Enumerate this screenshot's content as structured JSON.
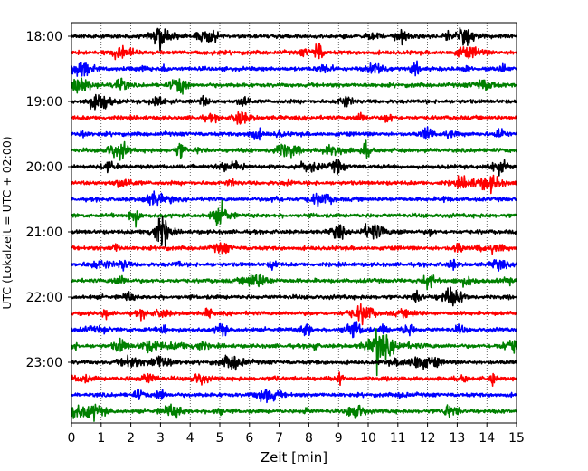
{
  "chart_data": {
    "type": "line",
    "title": "",
    "xlabel": "Zeit  [min]",
    "ylabel": "UTC (Lokalzeit = UTC + 02:00)",
    "xlim": [
      0,
      15
    ],
    "xticks": [
      0,
      1,
      2,
      3,
      4,
      5,
      6,
      7,
      8,
      9,
      10,
      11,
      12,
      13,
      14,
      15
    ],
    "ylim": [
      "17:55",
      "24:00"
    ],
    "ytick_labels": [
      "18:00",
      "19:00",
      "20:00",
      "21:00",
      "22:00",
      "23:00"
    ],
    "grid": "vertical dotted lines at each minute",
    "trace_interval_minutes": 15,
    "trace_colors": [
      "#000000",
      "#ff0000",
      "#0000ff",
      "#008000"
    ],
    "traces": [
      {
        "start": "18:00",
        "color": "#000000"
      },
      {
        "start": "18:15",
        "color": "#ff0000"
      },
      {
        "start": "18:30",
        "color": "#0000ff"
      },
      {
        "start": "18:45",
        "color": "#008000"
      },
      {
        "start": "19:00",
        "color": "#000000"
      },
      {
        "start": "19:15",
        "color": "#ff0000"
      },
      {
        "start": "19:30",
        "color": "#0000ff"
      },
      {
        "start": "19:45",
        "color": "#008000"
      },
      {
        "start": "20:00",
        "color": "#000000"
      },
      {
        "start": "20:15",
        "color": "#ff0000"
      },
      {
        "start": "20:30",
        "color": "#0000ff"
      },
      {
        "start": "20:45",
        "color": "#008000"
      },
      {
        "start": "21:00",
        "color": "#000000"
      },
      {
        "start": "21:15",
        "color": "#ff0000"
      },
      {
        "start": "21:30",
        "color": "#0000ff"
      },
      {
        "start": "21:45",
        "color": "#008000"
      },
      {
        "start": "22:00",
        "color": "#000000"
      },
      {
        "start": "22:15",
        "color": "#ff0000"
      },
      {
        "start": "22:30",
        "color": "#0000ff"
      },
      {
        "start": "22:45",
        "color": "#008000",
        "event": {
          "onset_min": 10.25,
          "decay_until_min": 12.8
        }
      },
      {
        "start": "23:00",
        "color": "#000000"
      },
      {
        "start": "23:15",
        "color": "#ff0000"
      },
      {
        "start": "23:30",
        "color": "#0000ff"
      },
      {
        "start": "23:45",
        "color": "#008000"
      }
    ]
  }
}
